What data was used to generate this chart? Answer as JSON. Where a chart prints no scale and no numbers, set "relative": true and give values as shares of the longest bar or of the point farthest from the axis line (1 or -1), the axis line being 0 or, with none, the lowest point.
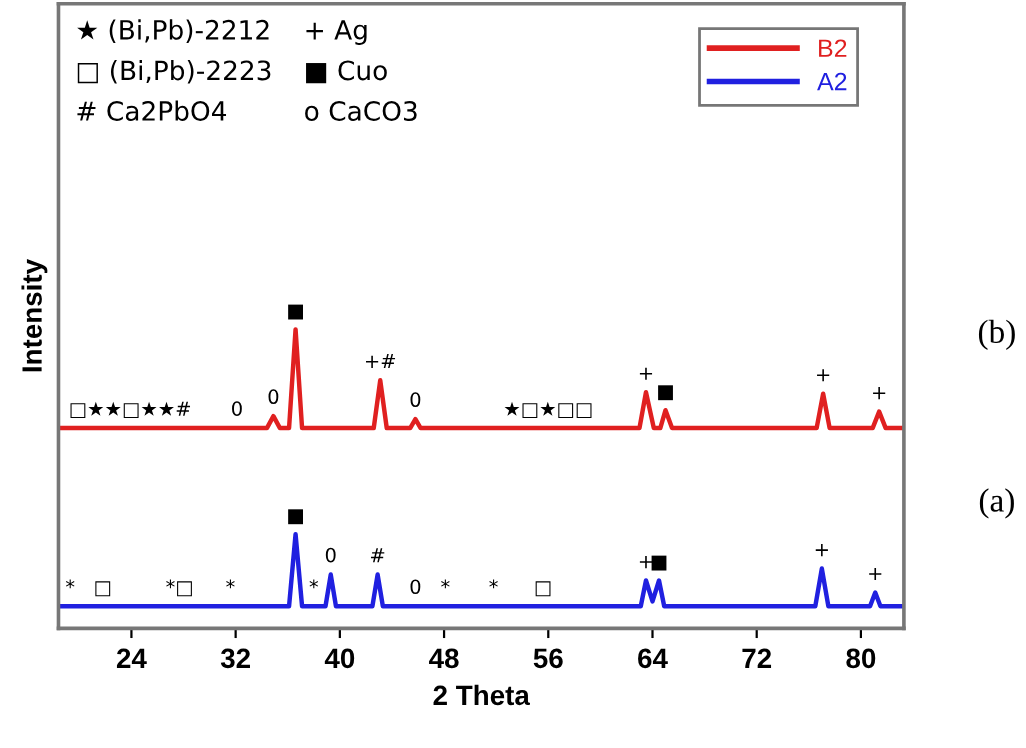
{
  "chart_data": {
    "type": "line",
    "relative": true,
    "xlabel": "2 Theta",
    "ylabel": "Intensity",
    "xlim": [
      18.4,
      83.3
    ],
    "xticks": [
      24,
      32,
      40,
      48,
      56,
      64,
      72,
      80
    ],
    "grid": false,
    "legend": "top right",
    "marker": "none",
    "line_style": "solid",
    "series": [
      {
        "name": "B2",
        "color": "#e02020",
        "x": [
          18.4,
          34.4,
          34.9,
          35.4,
          36.1,
          36.6,
          37.1,
          42.6,
          43.1,
          43.6,
          45.4,
          45.8,
          46.2,
          63.0,
          63.5,
          64.1,
          64.6,
          65.0,
          65.5,
          76.6,
          77.1,
          77.6,
          80.9,
          81.4,
          81.9,
          83.3
        ],
        "values": [
          0.67,
          0.67,
          0.71,
          0.67,
          0.67,
          1.0,
          0.67,
          0.67,
          0.83,
          0.67,
          0.67,
          0.7,
          0.67,
          0.67,
          0.79,
          0.67,
          0.67,
          0.73,
          0.67,
          0.67,
          0.785,
          0.67,
          0.67,
          0.725,
          0.67,
          0.67
        ]
      },
      {
        "name": "A2",
        "color": "#2020e0",
        "x": [
          18.4,
          36.1,
          36.6,
          37.1,
          38.9,
          39.3,
          39.7,
          42.5,
          42.9,
          43.3,
          63.1,
          63.5,
          64.0,
          64.5,
          64.9,
          76.5,
          77.0,
          77.5,
          80.7,
          81.1,
          81.5,
          83.3
        ],
        "values": [
          0.074,
          0.074,
          0.315,
          0.074,
          0.074,
          0.18,
          0.074,
          0.074,
          0.18,
          0.074,
          0.074,
          0.16,
          0.09,
          0.16,
          0.074,
          0.074,
          0.2,
          0.074,
          0.074,
          0.12,
          0.074,
          0.074
        ]
      }
    ],
    "annotations": [
      "★ (Bi,Pb)-2212",
      "+ Ag",
      "□ (Bi,Pb)-2223",
      "■ Cuo",
      "# Ca2PbO4",
      "o CaCO3",
      "(b)",
      "(a)",
      {
        "text": "□★★□★★#",
        "x": 23.9,
        "y": 0.67
      },
      {
        "text": "0",
        "x": 32.1,
        "y": 0.67
      },
      {
        "text": "0",
        "x": 34.9,
        "y": 0.71
      },
      {
        "text": "■",
        "x": 36.6,
        "y": 1.0
      },
      {
        "text": "+#",
        "x": 43.1,
        "y": 0.83
      },
      {
        "text": "0",
        "x": 45.8,
        "y": 0.7
      },
      {
        "text": "★□★□□",
        "x": 56.0,
        "y": 0.67
      },
      {
        "text": "+",
        "x": 63.5,
        "y": 0.79
      },
      {
        "text": "■",
        "x": 65.0,
        "y": 0.73
      },
      {
        "text": "+",
        "x": 77.1,
        "y": 0.785
      },
      {
        "text": "+",
        "x": 81.4,
        "y": 0.725
      },
      {
        "text": "*",
        "x": 19.3,
        "y": 0.074
      },
      {
        "text": "□",
        "x": 21.8,
        "y": 0.074
      },
      {
        "text": "*□",
        "x": 27.7,
        "y": 0.074
      },
      {
        "text": "*",
        "x": 31.6,
        "y": 0.074
      },
      {
        "text": "■",
        "x": 36.6,
        "y": 0.315
      },
      {
        "text": "*",
        "x": 38.0,
        "y": 0.074
      },
      {
        "text": "0",
        "x": 39.3,
        "y": 0.18
      },
      {
        "text": "#",
        "x": 42.9,
        "y": 0.18
      },
      {
        "text": "0",
        "x": 45.8,
        "y": 0.074
      },
      {
        "text": "*",
        "x": 48.1,
        "y": 0.074
      },
      {
        "text": "*",
        "x": 51.8,
        "y": 0.074
      },
      {
        "text": "□",
        "x": 55.6,
        "y": 0.074
      },
      {
        "text": "+",
        "x": 63.5,
        "y": 0.16
      },
      {
        "text": "■",
        "x": 64.5,
        "y": 0.16
      },
      {
        "text": "+",
        "x": 77.0,
        "y": 0.2
      },
      {
        "text": "+",
        "x": 81.1,
        "y": 0.12
      }
    ]
  }
}
